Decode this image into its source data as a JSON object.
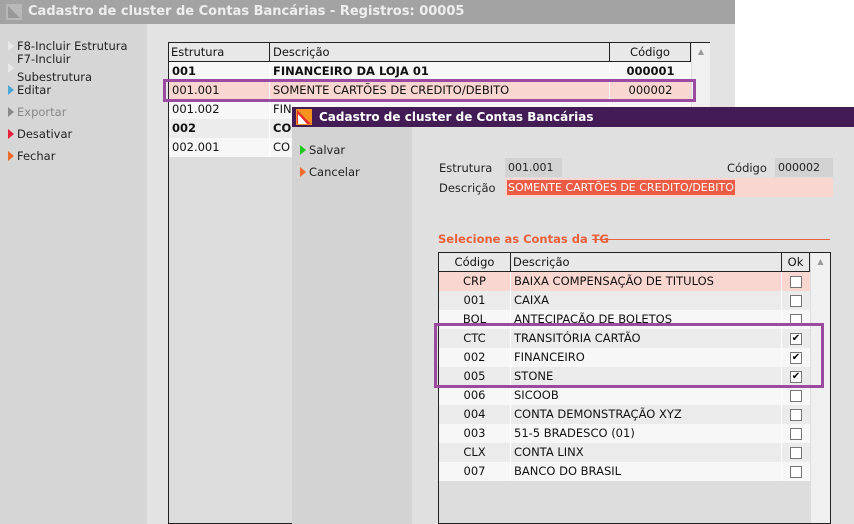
{
  "main": {
    "title": "Cadastro de cluster de Contas Bancárias - Registros: 00005",
    "actions": [
      {
        "label": "F8-Incluir Estrutura",
        "color": "#e8e8e8"
      },
      {
        "label": "F7-Incluir Subestrutura",
        "color": "#e8e8e8"
      },
      {
        "label": "Editar",
        "color": "#4aa8d8"
      },
      {
        "label": "Exportar",
        "color": "#8a8a8a"
      },
      {
        "label": "Desativar",
        "color": "#e8203a"
      },
      {
        "label": "Fechar",
        "color": "#f06a2a"
      }
    ],
    "columns": [
      "Estrutura",
      "Descrição",
      "Código"
    ],
    "rows": [
      {
        "estrutura": "001",
        "descricao": "FINANCEIRO DA LOJA 01",
        "codigo": "000001",
        "bold": true
      },
      {
        "estrutura": "001.001",
        "descricao": "SOMENTE CARTÕES DE CREDITO/DEBITO",
        "codigo": "000002",
        "selected": true
      },
      {
        "estrutura": "001.002",
        "descricao": "FIN",
        "codigo": ""
      },
      {
        "estrutura": "002",
        "descricao": "CON",
        "codigo": "",
        "bold": true
      },
      {
        "estrutura": "002.001",
        "descricao": "CO",
        "codigo": ""
      }
    ]
  },
  "dialog": {
    "title": "Cadastro de cluster de Contas Bancárias",
    "actions": [
      {
        "label": "Salvar",
        "color": "#1ec81e"
      },
      {
        "label": "Cancelar",
        "color": "#f06a2a"
      }
    ],
    "estrutura_label": "Estrutura",
    "estrutura_value": "001.001",
    "codigo_label": "Código",
    "codigo_value": "000002",
    "descricao_label": "Descrição",
    "descricao_value": "SOMENTE CARTÕES DE CREDITO/DEBITO",
    "section_title": "Selecione as Contas da TG",
    "columns": [
      "Código",
      "Descrição",
      "Ok"
    ],
    "rows": [
      {
        "codigo": "CRP",
        "descricao": "BAIXA COMPENSAÇÃO DE TITULOS",
        "ok": false,
        "selected": true
      },
      {
        "codigo": "001",
        "descricao": "CAIXA",
        "ok": false
      },
      {
        "codigo": "BOL",
        "descricao": "ANTECIPAÇÃO DE BOLETOS",
        "ok": false
      },
      {
        "codigo": "CTC",
        "descricao": "TRANSITÓRIA CARTÃO",
        "ok": true
      },
      {
        "codigo": "002",
        "descricao": "FINANCEIRO",
        "ok": true
      },
      {
        "codigo": "005",
        "descricao": "STONE",
        "ok": true
      },
      {
        "codigo": "006",
        "descricao": "SICOOB",
        "ok": false
      },
      {
        "codigo": "004",
        "descricao": "CONTA DEMONSTRAÇÃO XYZ",
        "ok": false
      },
      {
        "codigo": "003",
        "descricao": "51-5 BRADESCO (01)",
        "ok": false
      },
      {
        "codigo": "CLX",
        "descricao": "CONTA LINX",
        "ok": false
      },
      {
        "codigo": "007",
        "descricao": "BANCO DO BRASIL",
        "ok": false
      }
    ]
  },
  "colors": {
    "accent": "#431c55",
    "highlight": "#9b4aa0",
    "selected_row": "#f9d6cf",
    "section": "#e8603c"
  }
}
